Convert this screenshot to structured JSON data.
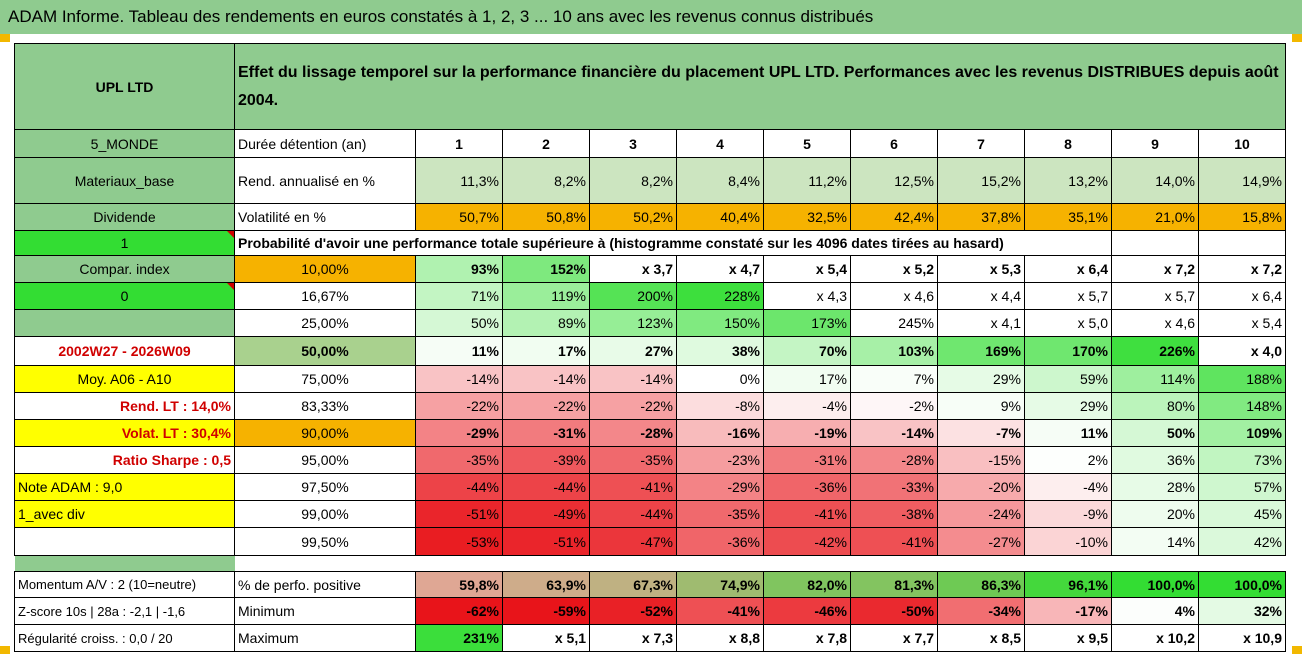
{
  "title": "ADAM Informe. Tableau des rendements en euros constatés à 1, 2, 3 ... 10 ans avec les revenus connus distribués",
  "fund_name": "UPL LTD",
  "description": "Effet du lissage temporel sur la performance financière du placement UPL LTD. Performances avec les revenus DISTRIBUES depuis août 2004.",
  "periods_label": "Durée détention (an)",
  "periods": [
    "1",
    "2",
    "3",
    "4",
    "5",
    "6",
    "7",
    "8",
    "9",
    "10"
  ],
  "left_labels": {
    "region": "5_MONDE",
    "sector": "Materiaux_base",
    "income": "Dividende",
    "one": "1",
    "compar": "Compar. index",
    "zero": "0",
    "date_range": "2002W27 - 2026W09",
    "moy": "Moy. A06 - A10",
    "rend_lt": "Rend. LT :    14,0%",
    "volat_lt": "Volat. LT :   30,4%",
    "sharpe": "Ratio Sharpe :    0,5",
    "note": "Note ADAM : 9,0",
    "avec_div": "1_avec div"
  },
  "rend_label": "Rend. annualisé en %",
  "rend_values": [
    "11,3%",
    "8,2%",
    "8,2%",
    "8,4%",
    "11,2%",
    "12,5%",
    "15,2%",
    "13,2%",
    "14,0%",
    "14,9%"
  ],
  "vol_label": "Volatilité en %",
  "vol_values": [
    "50,7%",
    "50,8%",
    "50,2%",
    "40,4%",
    "32,5%",
    "42,4%",
    "37,8%",
    "35,1%",
    "21,0%",
    "15,8%"
  ],
  "prob_label": "Probabilité d'avoir une performance totale supérieure à (histogramme constaté sur les 4096 dates tirées au hasard)",
  "quantile_rows": [
    {
      "p": "10,00%",
      "values": [
        "93%",
        "152%",
        "x 3,7",
        "x 4,7",
        "x 5,4",
        "x 5,2",
        "x 5,3",
        "x 6,4",
        "x 7,2",
        "x 7,2"
      ]
    },
    {
      "p": "16,67%",
      "values": [
        "71%",
        "119%",
        "200%",
        "228%",
        "x 4,3",
        "x 4,6",
        "x 4,4",
        "x 5,7",
        "x 5,7",
        "x 6,4"
      ]
    },
    {
      "p": "25,00%",
      "values": [
        "50%",
        "89%",
        "123%",
        "150%",
        "173%",
        "245%",
        "x 4,1",
        "x 5,0",
        "x 4,6",
        "x 5,4"
      ]
    },
    {
      "p": "50,00%",
      "values": [
        "11%",
        "17%",
        "27%",
        "38%",
        "70%",
        "103%",
        "169%",
        "170%",
        "226%",
        "x 4,0"
      ]
    },
    {
      "p": "75,00%",
      "values": [
        "-14%",
        "-14%",
        "-14%",
        "0%",
        "17%",
        "7%",
        "29%",
        "59%",
        "114%",
        "188%"
      ]
    },
    {
      "p": "83,33%",
      "values": [
        "-22%",
        "-22%",
        "-22%",
        "-8%",
        "-4%",
        "-2%",
        "9%",
        "29%",
        "80%",
        "148%"
      ]
    },
    {
      "p": "90,00%",
      "values": [
        "-29%",
        "-31%",
        "-28%",
        "-16%",
        "-19%",
        "-14%",
        "-7%",
        "11%",
        "50%",
        "109%"
      ]
    },
    {
      "p": "95,00%",
      "values": [
        "-35%",
        "-39%",
        "-35%",
        "-23%",
        "-31%",
        "-28%",
        "-15%",
        "2%",
        "36%",
        "73%"
      ]
    },
    {
      "p": "97,50%",
      "values": [
        "-44%",
        "-44%",
        "-41%",
        "-29%",
        "-36%",
        "-33%",
        "-20%",
        "-4%",
        "28%",
        "57%"
      ]
    },
    {
      "p": "99,00%",
      "values": [
        "-51%",
        "-49%",
        "-44%",
        "-35%",
        "-41%",
        "-38%",
        "-24%",
        "-9%",
        "20%",
        "45%"
      ]
    },
    {
      "p": "99,50%",
      "values": [
        "-53%",
        "-51%",
        "-47%",
        "-36%",
        "-42%",
        "-41%",
        "-27%",
        "-10%",
        "14%",
        "42%"
      ]
    }
  ],
  "bottom_rows": [
    {
      "left": "Momentum A/V : 2 (10=neutre)",
      "label": "% de perfo. positive",
      "values": [
        "59,8%",
        "63,9%",
        "67,3%",
        "74,9%",
        "82,0%",
        "81,3%",
        "86,3%",
        "96,1%",
        "100,0%",
        "100,0%"
      ]
    },
    {
      "left": "Z-score 10s | 28a : -2,1 | -1,6",
      "label": "Minimum",
      "values": [
        "-62%",
        "-59%",
        "-52%",
        "-41%",
        "-46%",
        "-50%",
        "-34%",
        "-17%",
        "4%",
        "32%"
      ]
    },
    {
      "left": "Régularité croiss. : 0,0 / 20",
      "label": "Maximum",
      "values": [
        "231%",
        "x 5,1",
        "x 7,3",
        "x 8,8",
        "x 7,8",
        "x 7,7",
        "x 8,5",
        "x 9,5",
        "x 10,2",
        "x 10,9"
      ]
    }
  ],
  "colors": {
    "header_green": "#8fcb8f",
    "light_green": "#cce5c0",
    "bright_green": "#33dd33",
    "orange": "#f6b200",
    "yellow": "#ffff00",
    "strong_red": "#e8141a",
    "red_text": "#d00000"
  }
}
